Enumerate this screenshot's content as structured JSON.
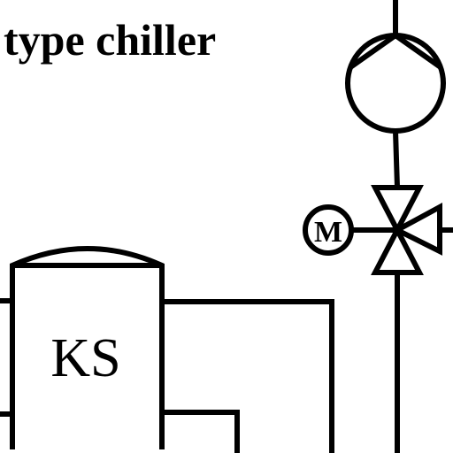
{
  "diagram": {
    "title": "type chiller",
    "tank_label": "KS",
    "motor_label": "M"
  },
  "colors": {
    "line": "#000000",
    "background": "#ffffff"
  },
  "symbols": {
    "pump": "centrifugal-pump-symbol",
    "valve": "three-way-valve-symbol",
    "actuator": "motor-actuator-symbol",
    "tank": "storage-tank-symbol"
  }
}
